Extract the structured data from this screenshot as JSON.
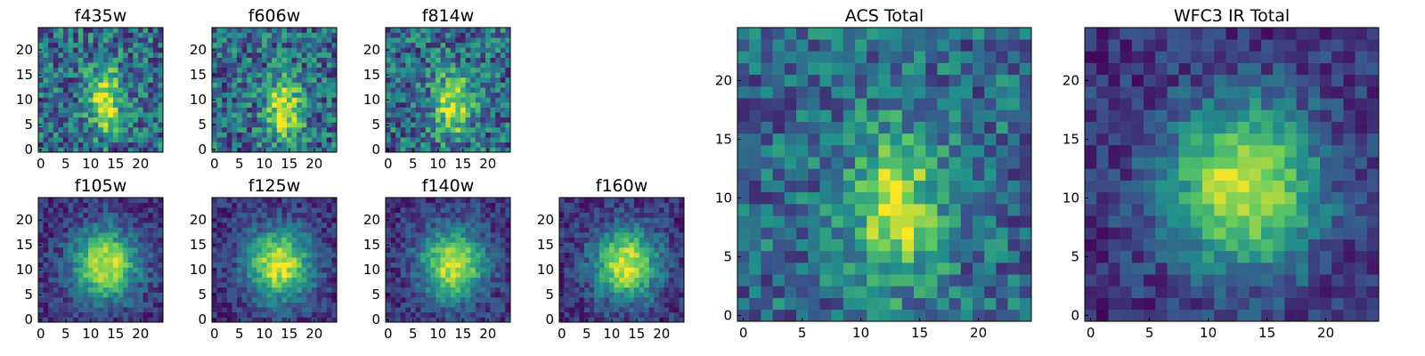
{
  "chart_data": [
    {
      "type": "heatmap",
      "title": "f435w",
      "xticks": [
        "0",
        "5",
        "10",
        "15",
        "20"
      ],
      "yticks": [
        "0",
        "5",
        "10",
        "15",
        "20"
      ],
      "xlim": [
        0,
        24
      ],
      "ylim": [
        0,
        24
      ],
      "grid": false,
      "colormap": "viridis",
      "peak": {
        "x": 13,
        "y": 10
      }
    },
    {
      "type": "heatmap",
      "title": "f606w",
      "xticks": [
        "0",
        "5",
        "10",
        "15",
        "20"
      ],
      "yticks": [
        "0",
        "5",
        "10",
        "15",
        "20"
      ],
      "xlim": [
        0,
        24
      ],
      "ylim": [
        0,
        24
      ],
      "grid": false,
      "colormap": "viridis",
      "peak": {
        "x": 14,
        "y": 8
      }
    },
    {
      "type": "heatmap",
      "title": "f814w",
      "xticks": [
        "0",
        "5",
        "10",
        "15",
        "20"
      ],
      "yticks": [
        "0",
        "5",
        "10",
        "15",
        "20"
      ],
      "xlim": [
        0,
        24
      ],
      "ylim": [
        0,
        24
      ],
      "grid": false,
      "colormap": "viridis",
      "peak": {
        "x": 13,
        "y": 9
      }
    },
    {
      "type": "heatmap",
      "title": "f105w",
      "xticks": [
        "0",
        "5",
        "10",
        "15",
        "20"
      ],
      "yticks": [
        "0",
        "5",
        "10",
        "15",
        "20"
      ],
      "xlim": [
        0,
        24
      ],
      "ylim": [
        0,
        24
      ],
      "grid": false,
      "colormap": "viridis",
      "peak": {
        "x": 13,
        "y": 11
      }
    },
    {
      "type": "heatmap",
      "title": "f125w",
      "xticks": [
        "0",
        "5",
        "10",
        "15",
        "20"
      ],
      "yticks": [
        "0",
        "5",
        "10",
        "15",
        "20"
      ],
      "xlim": [
        0,
        24
      ],
      "ylim": [
        0,
        24
      ],
      "grid": false,
      "colormap": "viridis",
      "peak": {
        "x": 13,
        "y": 11
      }
    },
    {
      "type": "heatmap",
      "title": "f140w",
      "xticks": [
        "0",
        "5",
        "10",
        "15",
        "20"
      ],
      "yticks": [
        "0",
        "5",
        "10",
        "15",
        "20"
      ],
      "xlim": [
        0,
        24
      ],
      "ylim": [
        0,
        24
      ],
      "grid": false,
      "colormap": "viridis",
      "peak": {
        "x": 13,
        "y": 11
      }
    },
    {
      "type": "heatmap",
      "title": "f160w",
      "xticks": [
        "0",
        "5",
        "10",
        "15",
        "20"
      ],
      "yticks": [
        "0",
        "5",
        "10",
        "15",
        "20"
      ],
      "xlim": [
        0,
        24
      ],
      "ylim": [
        0,
        24
      ],
      "grid": false,
      "colormap": "viridis",
      "peak": {
        "x": 13,
        "y": 11
      }
    },
    {
      "type": "heatmap",
      "title": "ACS Total",
      "xticks": [
        "0",
        "5",
        "10",
        "15",
        "20"
      ],
      "yticks": [
        "0",
        "5",
        "10",
        "15",
        "20"
      ],
      "xlim": [
        0,
        24
      ],
      "ylim": [
        0,
        24
      ],
      "grid": false,
      "colormap": "viridis",
      "peak": {
        "x": 13,
        "y": 9
      }
    },
    {
      "type": "heatmap",
      "title": "WFC3 IR Total",
      "xticks": [
        "0",
        "5",
        "10",
        "15",
        "20"
      ],
      "yticks": [
        "0",
        "5",
        "10",
        "15",
        "20"
      ],
      "xlim": [
        0,
        24
      ],
      "ylim": [
        0,
        24
      ],
      "grid": false,
      "colormap": "viridis",
      "peak": {
        "x": 13,
        "y": 11
      }
    }
  ]
}
